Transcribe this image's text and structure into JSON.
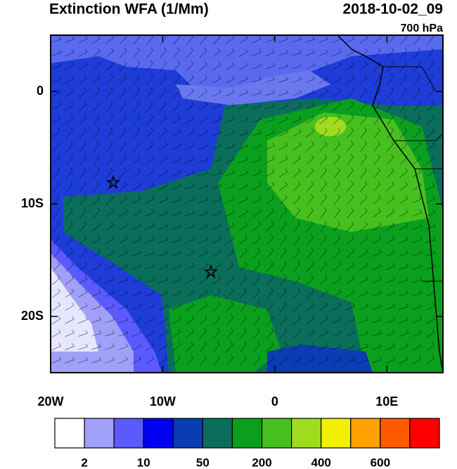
{
  "header": {
    "title": "Extinction WFA (1/Mm)",
    "date": "2018-10-02_09",
    "level": "700 hPa"
  },
  "map": {
    "lon_range": [
      -20,
      15
    ],
    "lat_range": [
      -25,
      5
    ],
    "lon_ticks": [
      {
        "value": -20,
        "label": "20W"
      },
      {
        "value": -10,
        "label": "10W"
      },
      {
        "value": 0,
        "label": "0"
      },
      {
        "value": 10,
        "label": "10E"
      }
    ],
    "lat_ticks": [
      {
        "value": 0,
        "label": "0"
      },
      {
        "value": -10,
        "label": "10S"
      },
      {
        "value": -20,
        "label": "20S"
      }
    ]
  },
  "colorbar": {
    "colors": [
      "#ffffff",
      "#a0a0f8",
      "#5a5aff",
      "#0000f0",
      "#0a3cb4",
      "#0a6e5a",
      "#0aa01e",
      "#46c01e",
      "#a0dc1e",
      "#f0f000",
      "#ffa000",
      "#ff5a00",
      "#ff0000"
    ],
    "labels": [
      2,
      10,
      50,
      200,
      400,
      600
    ]
  }
}
